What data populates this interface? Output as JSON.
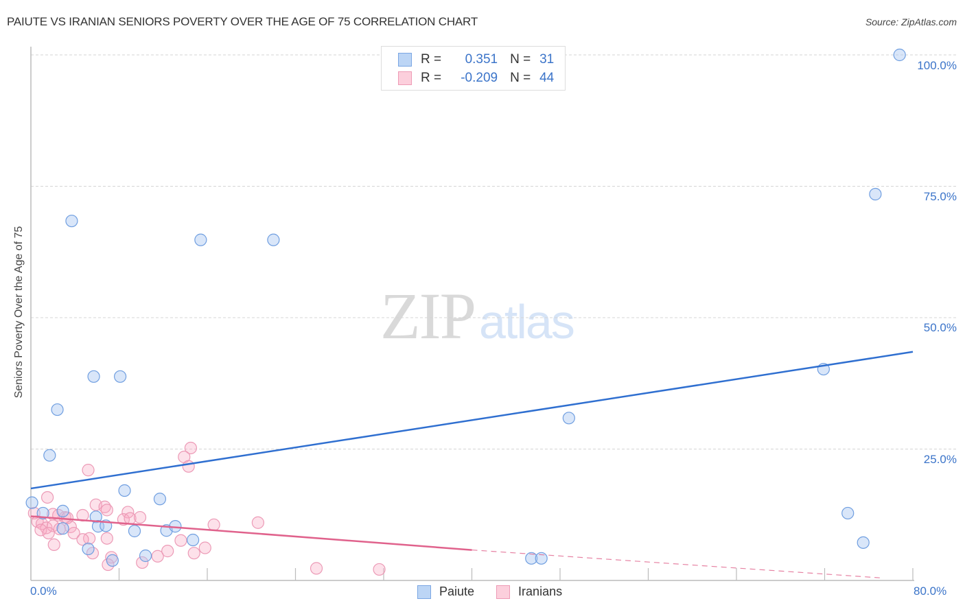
{
  "header": {
    "title": "PAIUTE VS IRANIAN SENIORS POVERTY OVER THE AGE OF 75 CORRELATION CHART",
    "source": "Source: ZipAtlas.com"
  },
  "legend": {
    "rows": [
      {
        "r_label": "R =",
        "r_value": "0.351",
        "n_label": "N =",
        "n_value": "31",
        "color": "#7aa6e3"
      },
      {
        "r_label": "R =",
        "r_value": "-0.209",
        "n_label": "N =",
        "n_value": "44",
        "color": "#ee9ab5"
      }
    ]
  },
  "bottom_legend": {
    "items": [
      {
        "label": "Paiute",
        "color": "#bcd5f5"
      },
      {
        "label": "Iranians",
        "color": "#fccfdc"
      }
    ]
  },
  "watermark": {
    "zip": "ZIP",
    "atlas": "atlas"
  },
  "axes": {
    "ylabel": "Seniors Poverty Over the Age of 75",
    "y_ticks": [
      "100.0%",
      "75.0%",
      "50.0%",
      "25.0%"
    ],
    "x_ticks": [
      "0.0%",
      "80.0%"
    ]
  },
  "chart_data": {
    "type": "scatter",
    "title": "PAIUTE VS IRANIAN SENIORS POVERTY OVER THE AGE OF 75 CORRELATION CHART",
    "xlabel": "",
    "ylabel": "Seniors Poverty Over the Age of 75",
    "xlim": [
      0,
      80
    ],
    "ylim": [
      0,
      100
    ],
    "x_tick_labels": [
      "0.0%",
      "80.0%"
    ],
    "y_tick_labels": [
      "25.0%",
      "50.0%",
      "75.0%",
      "100.0%"
    ],
    "grid": "horizontal dashed",
    "legend_position": "top-center",
    "series": [
      {
        "name": "Paiute",
        "color": "#7aa6e3",
        "R": 0.351,
        "N": 31,
        "trendline": {
          "x": [
            0,
            80
          ],
          "y": [
            17.5,
            43.5
          ],
          "style": "solid",
          "color": "#2f6fd0"
        },
        "points": [
          [
            78.8,
            100.0
          ],
          [
            76.6,
            73.5
          ],
          [
            71.9,
            40.2
          ],
          [
            48.8,
            30.9
          ],
          [
            74.1,
            12.8
          ],
          [
            75.5,
            7.2
          ],
          [
            45.4,
            4.2
          ],
          [
            46.3,
            4.2
          ],
          [
            3.7,
            68.4
          ],
          [
            15.4,
            64.8
          ],
          [
            22.0,
            64.8
          ],
          [
            5.7,
            38.8
          ],
          [
            8.1,
            38.8
          ],
          [
            2.4,
            32.5
          ],
          [
            1.7,
            23.8
          ],
          [
            8.5,
            17.1
          ],
          [
            11.7,
            15.5
          ],
          [
            0.1,
            14.8
          ],
          [
            1.1,
            12.8
          ],
          [
            2.9,
            13.2
          ],
          [
            5.9,
            12.1
          ],
          [
            2.9,
            9.9
          ],
          [
            6.1,
            10.3
          ],
          [
            6.8,
            10.4
          ],
          [
            9.4,
            9.4
          ],
          [
            12.3,
            9.5
          ],
          [
            13.1,
            10.3
          ],
          [
            14.7,
            7.7
          ],
          [
            5.2,
            6.0
          ],
          [
            10.4,
            4.7
          ],
          [
            7.4,
            3.8
          ]
        ]
      },
      {
        "name": "Iranians",
        "color": "#ee9ab5",
        "R": -0.209,
        "N": 44,
        "trendline": {
          "x": [
            0,
            40,
            80
          ],
          "y": [
            12.2,
            5.8,
            0.5
          ],
          "style": "solid to 40 then dashed",
          "color": "#e0628c"
        },
        "points": [
          [
            14.5,
            25.2
          ],
          [
            13.9,
            23.5
          ],
          [
            14.3,
            21.7
          ],
          [
            5.2,
            21.0
          ],
          [
            1.5,
            15.8
          ],
          [
            5.9,
            14.4
          ],
          [
            6.7,
            14.0
          ],
          [
            6.9,
            13.4
          ],
          [
            8.8,
            13.0
          ],
          [
            0.3,
            12.8
          ],
          [
            2.0,
            12.6
          ],
          [
            2.5,
            12.4
          ],
          [
            3.1,
            12.0
          ],
          [
            4.7,
            12.4
          ],
          [
            8.4,
            11.6
          ],
          [
            9.0,
            11.8
          ],
          [
            9.9,
            12.0
          ],
          [
            0.6,
            11.2
          ],
          [
            1.0,
            10.8
          ],
          [
            1.4,
            10.0
          ],
          [
            2.0,
            10.4
          ],
          [
            3.6,
            10.2
          ],
          [
            16.6,
            10.6
          ],
          [
            20.6,
            11.0
          ],
          [
            0.9,
            9.6
          ],
          [
            1.6,
            9.0
          ],
          [
            3.9,
            9.0
          ],
          [
            5.3,
            8.0
          ],
          [
            4.7,
            7.8
          ],
          [
            6.9,
            8.0
          ],
          [
            2.1,
            6.8
          ],
          [
            13.6,
            7.6
          ],
          [
            15.8,
            6.2
          ],
          [
            12.4,
            5.6
          ],
          [
            14.8,
            5.2
          ],
          [
            5.6,
            5.2
          ],
          [
            7.3,
            4.4
          ],
          [
            11.5,
            4.6
          ],
          [
            10.1,
            3.4
          ],
          [
            7.0,
            3.0
          ],
          [
            25.9,
            2.3
          ],
          [
            31.6,
            2.1
          ],
          [
            2.6,
            9.8
          ],
          [
            3.3,
            11.9
          ]
        ]
      }
    ]
  }
}
